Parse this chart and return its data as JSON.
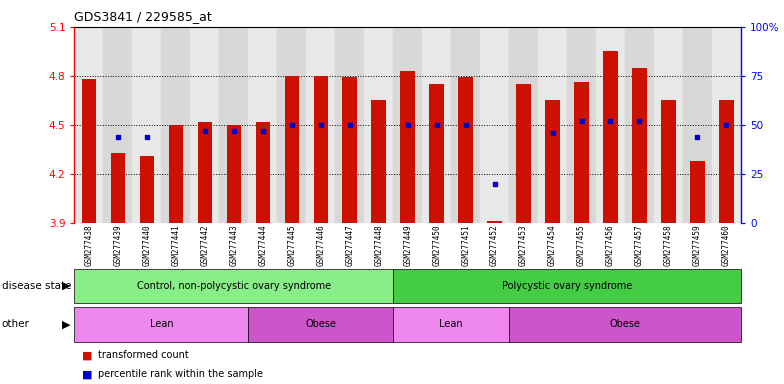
{
  "title": "GDS3841 / 229585_at",
  "samples": [
    "GSM277438",
    "GSM277439",
    "GSM277440",
    "GSM277441",
    "GSM277442",
    "GSM277443",
    "GSM277444",
    "GSM277445",
    "GSM277446",
    "GSM277447",
    "GSM277448",
    "GSM277449",
    "GSM277450",
    "GSM277451",
    "GSM277452",
    "GSM277453",
    "GSM277454",
    "GSM277455",
    "GSM277456",
    "GSM277457",
    "GSM277458",
    "GSM277459",
    "GSM277460"
  ],
  "bar_values": [
    4.78,
    4.33,
    4.31,
    4.5,
    4.52,
    4.5,
    4.52,
    4.8,
    4.8,
    4.79,
    4.65,
    4.83,
    4.75,
    4.79,
    3.91,
    4.75,
    4.65,
    4.76,
    4.95,
    4.85,
    4.65,
    4.28,
    4.65
  ],
  "dot_values": [
    null,
    44,
    44,
    null,
    47,
    47,
    47,
    50,
    50,
    50,
    null,
    50,
    50,
    50,
    20,
    null,
    46,
    52,
    52,
    52,
    null,
    44,
    50
  ],
  "ylim_left": [
    3.9,
    5.1
  ],
  "ylim_right": [
    0,
    100
  ],
  "yticks_left": [
    3.9,
    4.2,
    4.5,
    4.8,
    5.1
  ],
  "ytick_labels_left": [
    "3.9",
    "4.2",
    "4.5",
    "4.8",
    "5.1"
  ],
  "yticks_right": [
    0,
    25,
    50,
    75,
    100
  ],
  "ytick_labels_right": [
    "0",
    "25",
    "50",
    "75",
    "100%"
  ],
  "bar_color": "#cc1100",
  "dot_color": "#0000cc",
  "disease_state_groups": [
    {
      "label": "Control, non-polycystic ovary syndrome",
      "start": 0,
      "end": 10,
      "color": "#88ee88"
    },
    {
      "label": "Polycystic ovary syndrome",
      "start": 11,
      "end": 22,
      "color": "#44cc44"
    }
  ],
  "other_groups": [
    {
      "label": "Lean",
      "start": 0,
      "end": 5,
      "color": "#ee88ee"
    },
    {
      "label": "Obese",
      "start": 6,
      "end": 10,
      "color": "#cc55cc"
    },
    {
      "label": "Lean",
      "start": 11,
      "end": 14,
      "color": "#ee88ee"
    },
    {
      "label": "Obese",
      "start": 15,
      "end": 22,
      "color": "#cc55cc"
    }
  ],
  "disease_state_label": "disease state",
  "other_label": "other",
  "legend_items": [
    "transformed count",
    "percentile rank within the sample"
  ],
  "col_colors": [
    "#e8e8e8",
    "#d8d8d8"
  ]
}
